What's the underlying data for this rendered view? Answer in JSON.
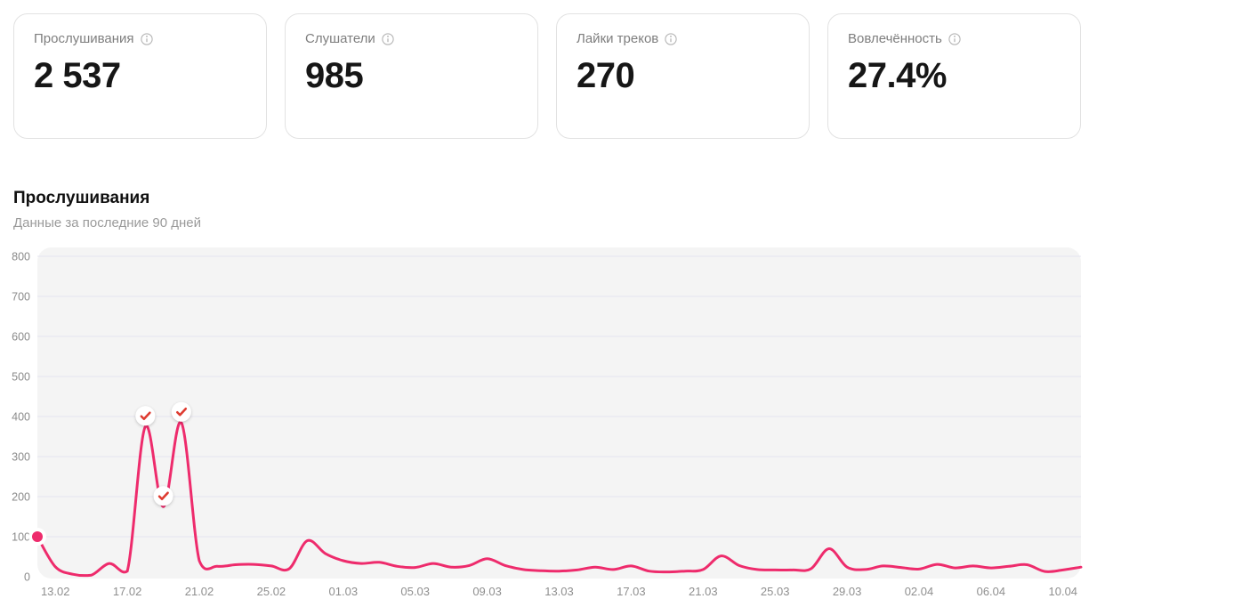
{
  "stats": {
    "cards": [
      {
        "label": "Прослушивания",
        "value": "2 537"
      },
      {
        "label": "Слушатели",
        "value": "985"
      },
      {
        "label": "Лайки треков",
        "value": "270"
      },
      {
        "label": "Вовлечённость",
        "value": "27.4%"
      }
    ]
  },
  "section": {
    "title": "Прослушивания",
    "subtitle": "Данные за последние 90 дней"
  },
  "chart_data": {
    "type": "line",
    "title": "Прослушивания",
    "subtitle": "Данные за последние 90 дней",
    "ylim": [
      0,
      800
    ],
    "y_ticks": [
      0,
      100,
      200,
      300,
      400,
      500,
      600,
      700,
      800
    ],
    "x_tick_labels": [
      "13.02",
      "17.02",
      "21.02",
      "25.02",
      "01.03",
      "05.03",
      "09.03",
      "13.03",
      "17.03",
      "21.03",
      "25.03",
      "29.03",
      "02.04",
      "06.04",
      "10.04"
    ],
    "x_tick_start": 1,
    "x_tick_step": 4,
    "dates": [
      "12.02",
      "13.02",
      "14.02",
      "15.02",
      "16.02",
      "17.02",
      "18.02",
      "19.02",
      "20.02",
      "21.02",
      "22.02",
      "23.02",
      "24.02",
      "25.02",
      "26.02",
      "27.02",
      "28.02",
      "01.03",
      "02.03",
      "03.03",
      "04.03",
      "05.03",
      "06.03",
      "07.03",
      "08.03",
      "09.03",
      "10.03",
      "11.03",
      "12.03",
      "13.03",
      "14.03",
      "15.03",
      "16.03",
      "17.03",
      "18.03",
      "19.03",
      "20.03",
      "21.03",
      "22.03",
      "23.03",
      "24.03",
      "25.03",
      "26.03",
      "27.03",
      "28.03",
      "29.03",
      "30.03",
      "31.03",
      "01.04",
      "02.04",
      "03.04",
      "04.04",
      "05.04",
      "06.04",
      "07.04",
      "08.04",
      "09.04",
      "10.04",
      "11.04"
    ],
    "values": [
      100,
      25,
      6,
      4,
      33,
      14,
      375,
      175,
      385,
      40,
      26,
      30,
      31,
      27,
      20,
      90,
      58,
      40,
      33,
      36,
      26,
      23,
      33,
      24,
      28,
      45,
      28,
      18,
      15,
      14,
      17,
      24,
      18,
      27,
      14,
      12,
      14,
      18,
      52,
      28,
      18,
      17,
      17,
      20,
      70,
      24,
      18,
      27,
      23,
      19,
      31,
      22,
      27,
      22,
      26,
      30,
      13,
      17,
      24
    ],
    "highlight_start_index": 0,
    "event_marker_indices": [
      6,
      7,
      8
    ],
    "grid": true,
    "line_color": "#EE2B6C",
    "dot_color": "#EE2B6C",
    "marker_check_color": "#DE3B30",
    "plot_bg": "#F4F4F4",
    "grid_color": "#E5E4F0",
    "y_tick_color": "#8A8A8A",
    "x_tick_color": "#8F8F8F"
  }
}
